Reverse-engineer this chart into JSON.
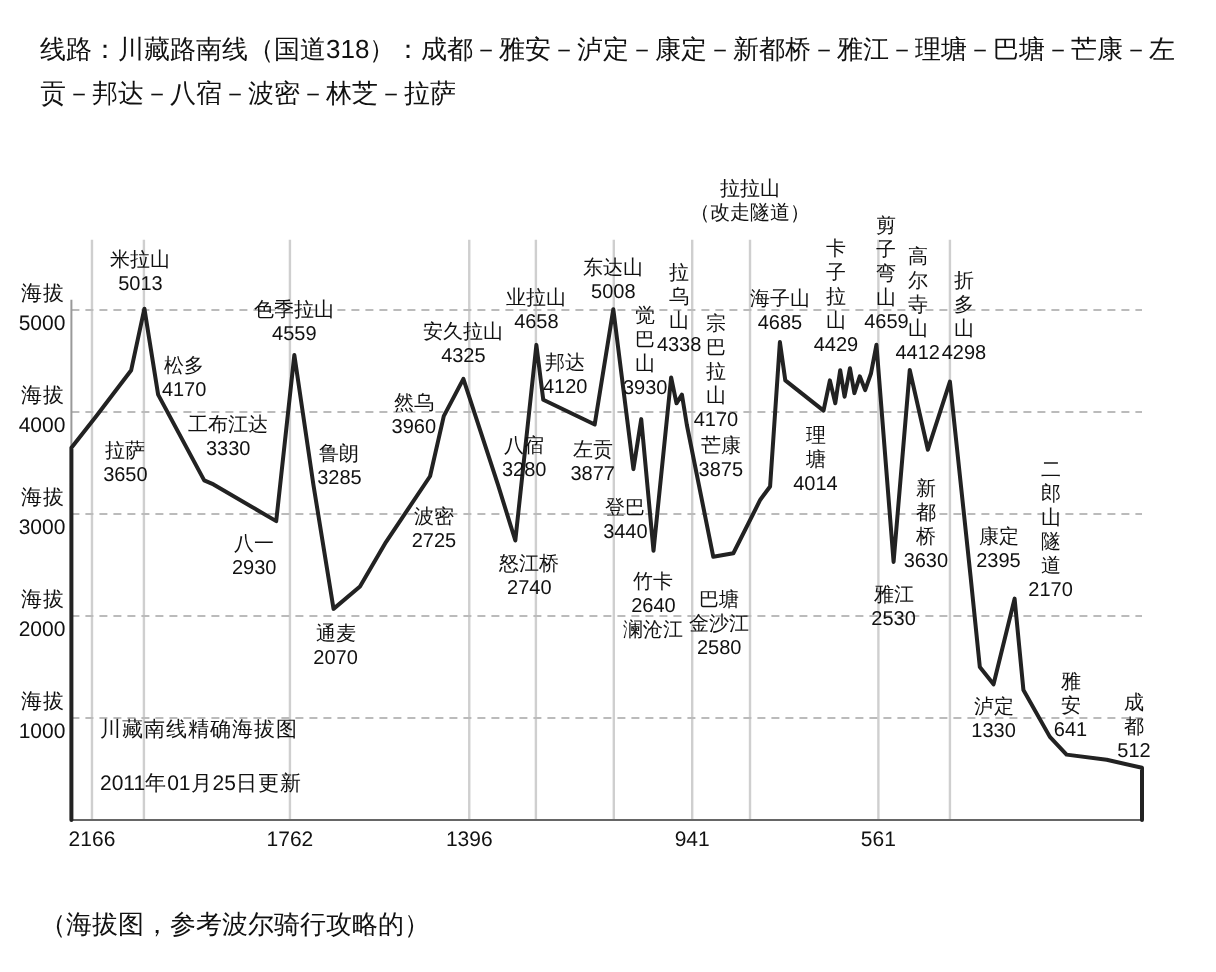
{
  "chart_data": {
    "type": "line",
    "title": "线路：川藏路南线（国道318）：成都－雅安－泸定－康定－新都桥－雅江－理塘－巴塘－芒康－左贡－邦达－八宿－波密－林芝－拉萨",
    "x": [
      2208,
      2208,
      2157,
      2086,
      2059,
      2031,
      1937,
      1918,
      1790,
      1753,
      1714,
      1673,
      1619,
      1566,
      1476,
      1448,
      1408,
      1337,
      1302,
      1259,
      1245,
      1140,
      1102,
      1061,
      1045,
      1020,
      984,
      973,
      962,
      952,
      898,
      857,
      802,
      782,
      762,
      751,
      673,
      660,
      649,
      639,
      630,
      619,
      610,
      599,
      588,
      576,
      565,
      530,
      497,
      460,
      415,
      373,
      354,
      326,
      283,
      265,
      211,
      177,
      95,
      23,
      23
    ],
    "series": [
      {
        "color": "#222222",
        "values": [
          0,
          3650,
          3960,
          4410,
          5013,
          4170,
          3330,
          3290,
          2930,
          4559,
          3285,
          2070,
          2290,
          2725,
          3370,
          3960,
          4325,
          3280,
          2740,
          4658,
          4120,
          3877,
          5008,
          3440,
          3930,
          2640,
          4338,
          4085,
          4170,
          3875,
          2580,
          2615,
          3140,
          3270,
          4685,
          4310,
          4014,
          4310,
          4085,
          4410,
          4150,
          4429,
          4185,
          4350,
          4215,
          4380,
          4659,
          2530,
          4412,
          3630,
          4298,
          2395,
          1500,
          1330,
          2170,
          1275,
          815,
          641,
          590,
          512,
          0
        ]
      }
    ],
    "xlim": [
      2208,
      23
    ],
    "ylim": [
      0,
      5100
    ],
    "xticks": [
      2166,
      {
        "value": 2060,
        "label": null
      },
      1762,
      1396,
      {
        "value": 1260,
        "label": null
      },
      {
        "value": 1101,
        "label": null
      },
      941,
      {
        "value": 823,
        "label": null
      },
      561,
      {
        "value": 415,
        "label": null
      }
    ],
    "yticks": [
      1000,
      2000,
      3000,
      4000,
      5000
    ],
    "grid": true,
    "annotations": [
      {
        "text": "米拉山\n5013",
        "x": 2059,
        "y": 5013
      },
      {
        "text": "拉萨\n3650",
        "x": 2208,
        "y": 3650
      },
      {
        "text": "松多\n4170",
        "x": 2031,
        "y": 4170
      },
      {
        "text": "工布江达\n3330",
        "x": 1937,
        "y": 3330
      },
      {
        "text": "八一\n2930",
        "x": 1790,
        "y": 2930
      },
      {
        "text": "色季拉山\n4559",
        "x": 1753,
        "y": 4559
      },
      {
        "text": "鲁朗\n3285",
        "x": 1714,
        "y": 3285
      },
      {
        "text": "通麦\n2070",
        "x": 1673,
        "y": 2070
      },
      {
        "text": "波密\n2725",
        "x": 1566,
        "y": 2725
      },
      {
        "text": "然乌\n3960",
        "x": 1448,
        "y": 3960
      },
      {
        "text": "安久拉山\n4325",
        "x": 1408,
        "y": 4325
      },
      {
        "text": "八宿\n3280",
        "x": 1337,
        "y": 3280
      },
      {
        "text": "怒江桥\n2740",
        "x": 1302,
        "y": 2740
      },
      {
        "text": "业拉山\n4658",
        "x": 1259,
        "y": 4658
      },
      {
        "text": "邦达\n4120",
        "x": 1245,
        "y": 4120
      },
      {
        "text": "左贡\n3877",
        "x": 1140,
        "y": 3877
      },
      {
        "text": "东达山\n5008",
        "x": 1102,
        "y": 5008
      },
      {
        "text": "觉巴山\n3930",
        "x": 1045,
        "y": 3930
      },
      {
        "text": "登巴\n3440",
        "x": 1061,
        "y": 3440
      },
      {
        "text": "竹卡\n2640\n澜沧江",
        "x": 1020,
        "y": 2640
      },
      {
        "text": "拉乌山\n4338",
        "x": 984,
        "y": 4338
      },
      {
        "text": "芒康\n3875",
        "x": 952,
        "y": 3875
      },
      {
        "text": "宗巴拉山\n4170",
        "x": 962,
        "y": 4170
      },
      {
        "text": "巴塘金沙江\n2580",
        "x": 898,
        "y": 2580
      },
      {
        "text": "海子山\n4685",
        "x": 762,
        "y": 4685
      },
      {
        "text": "理塘\n4014",
        "x": 673,
        "y": 4014
      },
      {
        "text": "卡子拉山\n4429",
        "x": 619,
        "y": 4429
      },
      {
        "text": "剪子弯山\n4659",
        "x": 565,
        "y": 4659
      },
      {
        "text": "雅江\n2530",
        "x": 530,
        "y": 2530
      },
      {
        "text": "高尔寺山\n4412",
        "x": 497,
        "y": 4412
      },
      {
        "text": "折多山\n4298",
        "x": 415,
        "y": 4298
      },
      {
        "text": "新都桥\n3630",
        "x": 460,
        "y": 3630
      },
      {
        "text": "康定\n2395",
        "x": 373,
        "y": 2395
      },
      {
        "text": "二郎山隧道\n2170",
        "x": 283,
        "y": 2170
      },
      {
        "text": "泸定\n1330",
        "x": 326,
        "y": 1330
      },
      {
        "text": "雅安\n641",
        "x": 177,
        "y": 641
      },
      {
        "text": "成都\n512",
        "x": 23,
        "y": 512
      },
      "拉拉山（改走隧道）",
      "川藏南线精确海拔图",
      "2011年01月25日更新",
      "（海拔图，参考波尔骑行攻略的）",
      "海拔",
      "海拔",
      "海拔",
      "海拔",
      "海拔"
    ]
  }
}
